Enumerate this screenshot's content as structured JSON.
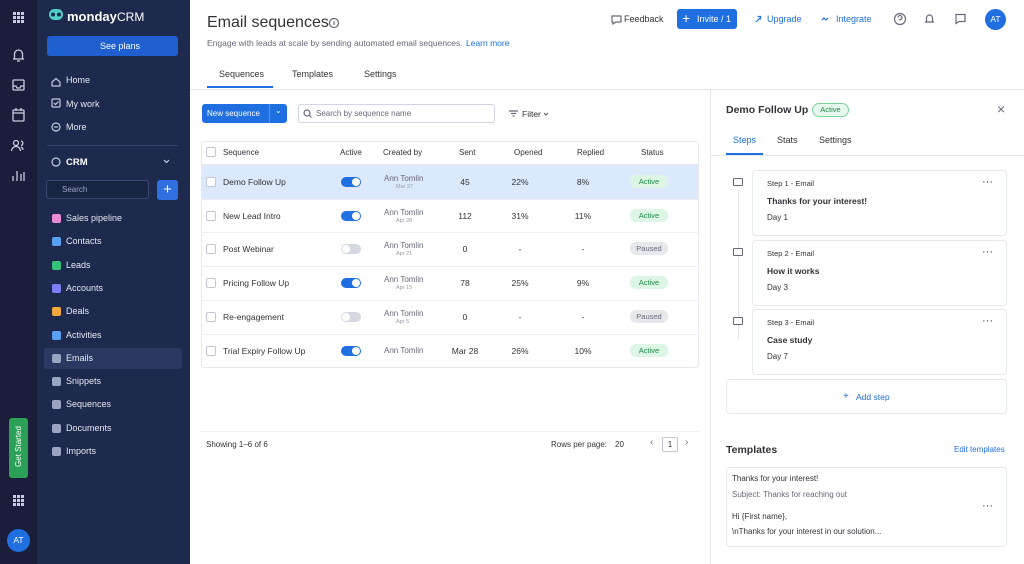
{
  "sidebar": {
    "brand": "monday",
    "brand_suffix": "CRM",
    "see_plans": "See plans",
    "nav": [
      "Home",
      "My work",
      "More"
    ],
    "workspace": "CRM",
    "search_placeholder": "Search",
    "items": [
      "Sales pipeline",
      "Contacts",
      "Leads",
      "Accounts",
      "Deals",
      "Activities",
      "Emails",
      "Snippets",
      "Sequences",
      "Documents",
      "Imports"
    ],
    "selected_item": "Emails",
    "get_started": "Get Started",
    "avatar": "AT"
  },
  "header": {
    "title": "Email sequences",
    "subtitle": "Engage with leads at scale by sending automated email sequences.",
    "learn_more": "Learn more",
    "feedback": "Feedback",
    "invite": "Invite / 1",
    "upgrade": "Upgrade",
    "integrate": "Integrate",
    "avatar": "AT"
  },
  "tabs": {
    "items": [
      "Sequences",
      "Templates",
      "Settings"
    ],
    "selected": "Sequences"
  },
  "toolbar": {
    "new_sequence": "New sequence",
    "search_placeholder": "Search by sequence name",
    "filter": "Filter"
  },
  "table": {
    "columns": [
      "Sequence",
      "Active",
      "Created by",
      "Sent",
      "Opened",
      "Replied",
      "Status"
    ],
    "rows": [
      {
        "name": "Demo Follow Up",
        "active": true,
        "creator": "Ann Tomlin",
        "created": "Mar 27",
        "sent": "45",
        "opened": "22%",
        "replied": "8%",
        "status": "Active",
        "selected": true
      },
      {
        "name": "New Lead Intro",
        "active": true,
        "creator": "Ann Tomlin",
        "created": "Apr 28",
        "sent": "112",
        "opened": "31%",
        "replied": "11%",
        "status": "Active"
      },
      {
        "name": "Post Webinar",
        "active": false,
        "creator": "Ann Tomlin",
        "created": "Apr 21",
        "sent": "0",
        "opened": "-",
        "replied": "-",
        "status": "Paused"
      },
      {
        "name": "Pricing Follow Up",
        "active": true,
        "creator": "Ann Tomlin",
        "created": "Apr 15",
        "sent": "78",
        "opened": "25%",
        "replied": "9%",
        "status": "Active"
      },
      {
        "name": "Re-engagement",
        "active": false,
        "creator": "Ann Tomlin",
        "created": "Apr 5",
        "sent": "0",
        "opened": "-",
        "replied": "-",
        "status": "Paused"
      },
      {
        "name": "Trial Expiry Follow Up",
        "active": true,
        "creator": "Ann Tomlin",
        "sent": "Mar 28",
        "opened": "26%",
        "replied": "10%",
        "status": "Active"
      }
    ],
    "footer": {
      "showing": "Showing 1–6 of 6",
      "rows_per_page": "Rows per page:",
      "page_size": "20",
      "page": "1"
    }
  },
  "panel": {
    "title": "Demo Follow Up",
    "badge": "Active",
    "tabs": [
      "Steps",
      "Stats",
      "Settings"
    ],
    "selected_tab": "Steps",
    "steps": [
      {
        "label": "Step 1 - Email",
        "subject": "Thanks for your interest!",
        "day": "Day 1"
      },
      {
        "label": "Step 2 - Email",
        "subject": "How it works",
        "day": "Day 3"
      },
      {
        "label": "Step 3 - Email",
        "subject": "Case study",
        "day": "Day 7"
      }
    ],
    "add_step": "Add step",
    "templates_title": "Templates",
    "edit_templates": "Edit templates",
    "template": {
      "name": "Thanks for your interest!",
      "subject": "Subject: Thanks for reaching out",
      "body": [
        "Hi {First name},",
        "\\nThanks for your interest in our solution..."
      ]
    }
  }
}
